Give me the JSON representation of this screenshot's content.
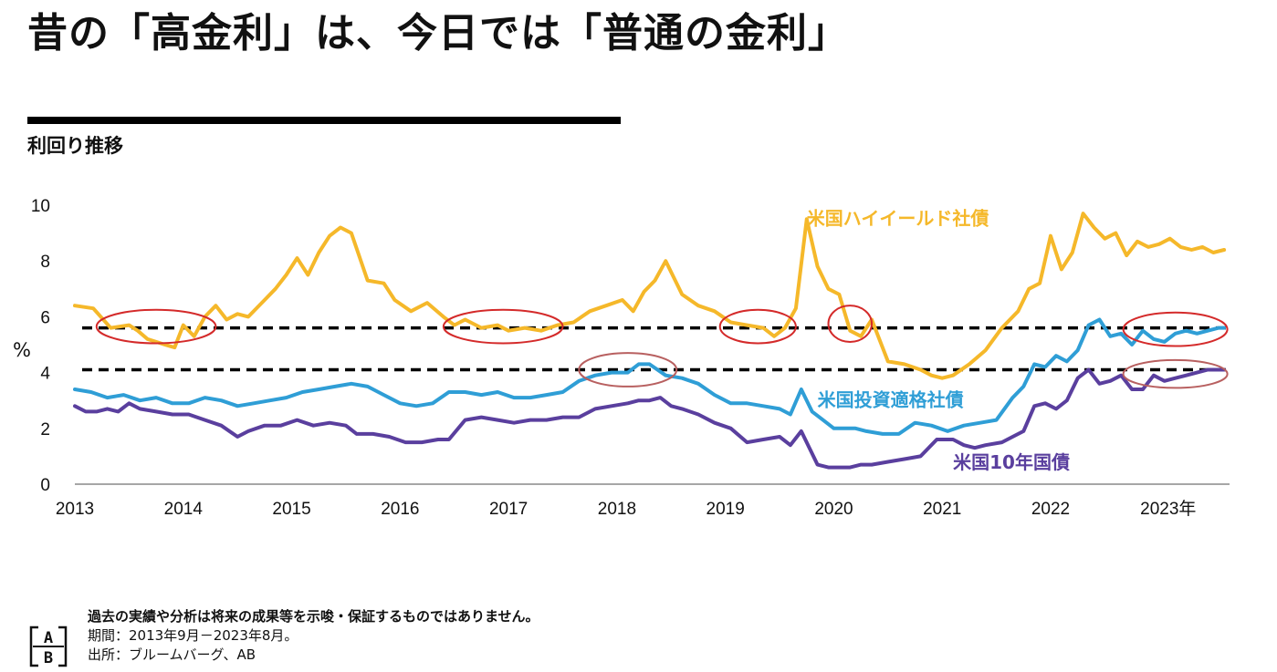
{
  "header": {
    "title": "昔の「高金利」は、今日では「普通の金利」",
    "subtitle": "利回り推移",
    "y_unit": "%"
  },
  "chart_data": {
    "type": "line",
    "ylim": [
      0,
      10
    ],
    "xlim": [
      2013.0,
      2023.65
    ],
    "y_ticks": [
      "0",
      "2",
      "4",
      "6",
      "8",
      "10"
    ],
    "x_ticks": [
      "2013",
      "2014",
      "2015",
      "2016",
      "2017",
      "2018",
      "2019",
      "2020",
      "2021",
      "2022",
      "2023年"
    ],
    "x_tick_values": [
      2013,
      2014,
      2015,
      2016,
      2017,
      2018,
      2019,
      2020,
      2021,
      2022,
      2023
    ],
    "grid": false,
    "legend": "inline labels next to series",
    "series": [
      {
        "name": "米国ハイイールド社債",
        "color": "#F5B82A",
        "x": [
          2013.0,
          2013.17,
          2013.33,
          2013.5,
          2013.58,
          2013.67,
          2013.75,
          2013.83,
          2013.92,
          2014.0,
          2014.1,
          2014.2,
          2014.3,
          2014.4,
          2014.5,
          2014.6,
          2014.75,
          2014.85,
          2014.95,
          2015.05,
          2015.15,
          2015.25,
          2015.35,
          2015.45,
          2015.55,
          2015.7,
          2015.85,
          2015.95,
          2016.1,
          2016.25,
          2016.4,
          2016.5,
          2016.6,
          2016.75,
          2016.9,
          2017.0,
          2017.15,
          2017.3,
          2017.45,
          2017.6,
          2017.75,
          2017.9,
          2018.05,
          2018.15,
          2018.25,
          2018.35,
          2018.45,
          2018.6,
          2018.75,
          2018.9,
          2019.05,
          2019.2,
          2019.35,
          2019.45,
          2019.55,
          2019.65,
          2019.75,
          2019.85,
          2019.95,
          2020.05,
          2020.15,
          2020.25,
          2020.35,
          2020.5,
          2020.65,
          2020.8,
          2020.9,
          2021.0,
          2021.1,
          2021.25,
          2021.4,
          2021.55,
          2021.7,
          2021.8,
          2021.9,
          2022.0,
          2022.1,
          2022.2,
          2022.3,
          2022.4,
          2022.5,
          2022.6,
          2022.7,
          2022.8,
          2022.9,
          2023.0,
          2023.1,
          2023.2,
          2023.3,
          2023.4,
          2023.5,
          2023.6
        ],
        "values": [
          6.4,
          6.3,
          5.6,
          5.7,
          5.5,
          5.2,
          5.1,
          5.0,
          4.9,
          5.7,
          5.3,
          6.0,
          6.4,
          5.9,
          6.1,
          6.0,
          6.6,
          7.0,
          7.5,
          8.1,
          7.5,
          8.3,
          8.9,
          9.2,
          9.0,
          7.3,
          7.2,
          6.6,
          6.2,
          6.5,
          6.0,
          5.7,
          5.9,
          5.6,
          5.7,
          5.5,
          5.6,
          5.5,
          5.7,
          5.8,
          6.2,
          6.4,
          6.6,
          6.2,
          6.9,
          7.3,
          8.0,
          6.8,
          6.4,
          6.2,
          5.8,
          5.7,
          5.6,
          5.3,
          5.6,
          6.3,
          9.5,
          7.8,
          7.0,
          6.8,
          5.5,
          5.3,
          5.9,
          4.4,
          4.3,
          4.1,
          3.9,
          3.8,
          3.9,
          4.3,
          4.8,
          5.6,
          6.2,
          7.0,
          7.2,
          8.9,
          7.7,
          8.3,
          9.7,
          9.2,
          8.8,
          9.0,
          8.2,
          8.7,
          8.5,
          8.6,
          8.8,
          8.5,
          8.4,
          8.5,
          8.3,
          8.4
        ]
      },
      {
        "name": "米国投資適格社債",
        "color": "#2F9ED6",
        "x": [
          2013.0,
          2013.15,
          2013.3,
          2013.45,
          2013.6,
          2013.75,
          2013.9,
          2014.05,
          2014.2,
          2014.35,
          2014.5,
          2014.65,
          2014.8,
          2014.95,
          2015.1,
          2015.25,
          2015.4,
          2015.55,
          2015.7,
          2015.85,
          2016.0,
          2016.15,
          2016.3,
          2016.45,
          2016.6,
          2016.75,
          2016.9,
          2017.05,
          2017.2,
          2017.35,
          2017.5,
          2017.65,
          2017.8,
          2017.95,
          2018.1,
          2018.2,
          2018.3,
          2018.45,
          2018.6,
          2018.75,
          2018.9,
          2019.05,
          2019.2,
          2019.35,
          2019.5,
          2019.6,
          2019.7,
          2019.8,
          2019.9,
          2020.0,
          2020.1,
          2020.2,
          2020.3,
          2020.45,
          2020.6,
          2020.75,
          2020.9,
          2021.05,
          2021.2,
          2021.35,
          2021.5,
          2021.65,
          2021.75,
          2021.85,
          2021.95,
          2022.05,
          2022.15,
          2022.25,
          2022.35,
          2022.45,
          2022.55,
          2022.65,
          2022.75,
          2022.85,
          2022.95,
          2023.05,
          2023.15,
          2023.25,
          2023.35,
          2023.45,
          2023.55,
          2023.6
        ],
        "values": [
          3.4,
          3.3,
          3.1,
          3.2,
          3.0,
          3.1,
          2.9,
          2.9,
          3.1,
          3.0,
          2.8,
          2.9,
          3.0,
          3.1,
          3.3,
          3.4,
          3.5,
          3.6,
          3.5,
          3.2,
          2.9,
          2.8,
          2.9,
          3.3,
          3.3,
          3.2,
          3.3,
          3.1,
          3.1,
          3.2,
          3.3,
          3.7,
          3.9,
          4.0,
          4.0,
          4.3,
          4.3,
          3.9,
          3.8,
          3.6,
          3.2,
          2.9,
          2.9,
          2.8,
          2.7,
          2.5,
          3.4,
          2.6,
          2.3,
          2.0,
          2.0,
          2.0,
          1.9,
          1.8,
          1.8,
          2.2,
          2.1,
          1.9,
          2.1,
          2.2,
          2.3,
          3.1,
          3.5,
          4.3,
          4.2,
          4.6,
          4.4,
          4.8,
          5.7,
          5.9,
          5.3,
          5.4,
          5.0,
          5.5,
          5.2,
          5.1,
          5.4,
          5.5,
          5.4,
          5.5,
          5.6,
          5.6
        ]
      },
      {
        "name": "米国10年国債",
        "color": "#5A3F9E",
        "x": [
          2013.0,
          2013.1,
          2013.2,
          2013.3,
          2013.4,
          2013.5,
          2013.6,
          2013.75,
          2013.9,
          2014.05,
          2014.2,
          2014.35,
          2014.5,
          2014.6,
          2014.75,
          2014.9,
          2015.05,
          2015.2,
          2015.35,
          2015.5,
          2015.6,
          2015.75,
          2015.9,
          2016.05,
          2016.2,
          2016.35,
          2016.45,
          2016.6,
          2016.75,
          2016.9,
          2017.05,
          2017.2,
          2017.35,
          2017.5,
          2017.65,
          2017.8,
          2017.95,
          2018.1,
          2018.2,
          2018.3,
          2018.4,
          2018.5,
          2018.6,
          2018.75,
          2018.9,
          2019.05,
          2019.2,
          2019.35,
          2019.5,
          2019.6,
          2019.7,
          2019.85,
          2019.95,
          2020.05,
          2020.15,
          2020.25,
          2020.35,
          2020.5,
          2020.65,
          2020.8,
          2020.95,
          2021.1,
          2021.2,
          2021.3,
          2021.4,
          2021.55,
          2021.65,
          2021.75,
          2021.85,
          2021.95,
          2022.05,
          2022.15,
          2022.25,
          2022.35,
          2022.45,
          2022.55,
          2022.65,
          2022.75,
          2022.85,
          2022.95,
          2023.05,
          2023.15,
          2023.25,
          2023.35,
          2023.45,
          2023.55,
          2023.6
        ],
        "values": [
          2.8,
          2.6,
          2.6,
          2.7,
          2.6,
          2.9,
          2.7,
          2.6,
          2.5,
          2.5,
          2.3,
          2.1,
          1.7,
          1.9,
          2.1,
          2.1,
          2.3,
          2.1,
          2.2,
          2.1,
          1.8,
          1.8,
          1.7,
          1.5,
          1.5,
          1.6,
          1.6,
          2.3,
          2.4,
          2.3,
          2.2,
          2.3,
          2.3,
          2.4,
          2.4,
          2.7,
          2.8,
          2.9,
          3.0,
          3.0,
          3.1,
          2.8,
          2.7,
          2.5,
          2.2,
          2.0,
          1.5,
          1.6,
          1.7,
          1.4,
          1.9,
          0.7,
          0.6,
          0.6,
          0.6,
          0.7,
          0.7,
          0.8,
          0.9,
          1.0,
          1.6,
          1.6,
          1.4,
          1.3,
          1.4,
          1.5,
          1.7,
          1.9,
          2.8,
          2.9,
          2.7,
          3.0,
          3.8,
          4.1,
          3.6,
          3.7,
          3.9,
          3.4,
          3.4,
          3.9,
          3.7,
          3.8,
          3.9,
          4.0,
          4.1,
          4.1,
          4.1
        ]
      }
    ],
    "reference_lines": [
      {
        "y": 5.6,
        "style": "dashed",
        "color": "#000000"
      },
      {
        "y": 4.1,
        "style": "dashed",
        "color": "#000000"
      }
    ],
    "highlights": [
      {
        "cx": 2013.75,
        "cy": 5.65,
        "rx": 0.55,
        "ry": 0.6,
        "color": "#D42A2A"
      },
      {
        "cx": 2016.95,
        "cy": 5.65,
        "rx": 0.55,
        "ry": 0.6,
        "color": "#D42A2A"
      },
      {
        "cx": 2019.3,
        "cy": 5.65,
        "rx": 0.35,
        "ry": 0.6,
        "color": "#D42A2A"
      },
      {
        "cx": 2020.15,
        "cy": 5.75,
        "rx": 0.2,
        "ry": 0.65,
        "color": "#D42A2A"
      },
      {
        "cx": 2023.15,
        "cy": 5.55,
        "rx": 0.48,
        "ry": 0.6,
        "color": "#D42A2A"
      },
      {
        "cx": 2018.1,
        "cy": 4.1,
        "rx": 0.45,
        "ry": 0.6,
        "color": "#B86060"
      },
      {
        "cx": 2023.15,
        "cy": 3.95,
        "rx": 0.48,
        "ry": 0.5,
        "color": "#B86060"
      }
    ],
    "annotations": [
      {
        "text": "米国ハイイールド社債",
        "x": 2019.75,
        "y": 9.3,
        "color": "#F5B82A"
      },
      {
        "text": "米国投資適格社債",
        "x": 2019.85,
        "y": 2.8,
        "color": "#2F9ED6"
      },
      {
        "text": "米国10年国債",
        "x": 2021.1,
        "y": 0.55,
        "color": "#5A3F9E"
      }
    ]
  },
  "footer": {
    "disclaimer": "過去の実績や分析は将来の成果等を示唆・保証するものではありません。",
    "period": "期間：2013年9月－2023年8月。",
    "source": "出所：ブルームバーグ、AB",
    "logo_text": "AB"
  }
}
